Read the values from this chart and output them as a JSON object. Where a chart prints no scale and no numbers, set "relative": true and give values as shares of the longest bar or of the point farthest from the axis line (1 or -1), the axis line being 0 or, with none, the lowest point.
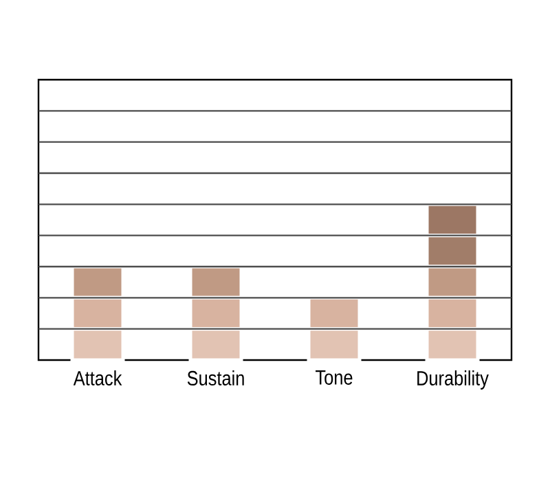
{
  "chart_data": {
    "type": "bar",
    "relative": true,
    "stacked": true,
    "grid": "y",
    "categories": [
      "Attack",
      "Sustain",
      "Tone",
      "Durability"
    ],
    "series": [
      {
        "color": "#e2c3b3",
        "values": [
          0.2,
          0.2,
          0.2,
          0.2
        ]
      },
      {
        "color": "#d8b3a0",
        "values": [
          0.2,
          0.2,
          0.2,
          0.2
        ]
      },
      {
        "color": "#c09a84",
        "values": [
          0.2,
          0.2,
          null,
          0.2
        ]
      },
      {
        "color": "#a17d69",
        "values": [
          null,
          null,
          null,
          0.2
        ]
      },
      {
        "color": "#9c7764",
        "values": [
          null,
          null,
          null,
          0.2
        ]
      }
    ]
  }
}
